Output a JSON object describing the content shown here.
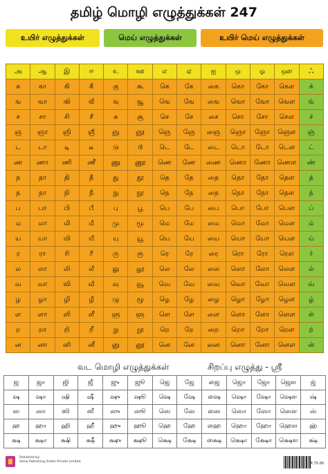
{
  "title": "தமிழ் மொழி எழுத்துக்கள் 247",
  "legend": {
    "vowels": "உயிர் எழுத்துக்கள்",
    "consonants": "மெய் எழுத்துக்கள்",
    "compound": "உயிர் மெய் எழுத்துக்கள்"
  },
  "colors": {
    "vowel": "#f2e11f",
    "consonant": "#8cc63f",
    "compound": "#f4a21d"
  },
  "vowels": [
    "அ",
    "ஆ",
    "இ",
    "ஈ",
    "உ",
    "ஊ",
    "எ",
    "ஏ",
    "ஐ",
    "ஒ",
    "ஓ",
    "ஔ",
    "ஃ"
  ],
  "rows": [
    {
      "cells": [
        "க",
        "கா",
        "கி",
        "கீ",
        "கு",
        "கூ",
        "கெ",
        "கே",
        "கை",
        "கொ",
        "கோ",
        "கௌ"
      ],
      "consonant": "க்"
    },
    {
      "cells": [
        "ங",
        "ஙா",
        "ஙி",
        "ஙீ",
        "ஙு",
        "ஙூ",
        "ஙெ",
        "ஙே",
        "ஙை",
        "ஙொ",
        "ஙோ",
        "ஙௌ"
      ],
      "consonant": "ங்"
    },
    {
      "cells": [
        "ச",
        "சா",
        "சி",
        "சீ",
        "சு",
        "சூ",
        "செ",
        "சே",
        "சை",
        "சொ",
        "சோ",
        "சௌ"
      ],
      "consonant": "ச்"
    },
    {
      "cells": [
        "ஞ",
        "ஞா",
        "ஞி",
        "ஞீ",
        "ஞு",
        "ஞூ",
        "ஞெ",
        "ஞே",
        "ஞை",
        "ஞொ",
        "ஞோ",
        "ஞௌ"
      ],
      "consonant": "ஞ்"
    },
    {
      "cells": [
        "ட",
        "டா",
        "டி",
        "டீ",
        "டு",
        "டூ",
        "டெ",
        "டே",
        "டை",
        "டொ",
        "டோ",
        "டௌ"
      ],
      "consonant": "ட்"
    },
    {
      "cells": [
        "ண",
        "ணா",
        "ணி",
        "ணீ",
        "ணு",
        "ணூ",
        "ணெ",
        "ணே",
        "ணை",
        "ணொ",
        "ணோ",
        "ணௌ"
      ],
      "consonant": "ண்"
    },
    {
      "cells": [
        "த",
        "தா",
        "தி",
        "தீ",
        "து",
        "தூ",
        "தெ",
        "தே",
        "தை",
        "தொ",
        "தோ",
        "தௌ"
      ],
      "consonant": "த்"
    },
    {
      "cells": [
        "ந",
        "நா",
        "நி",
        "நீ",
        "நு",
        "நூ",
        "நெ",
        "நே",
        "நை",
        "நொ",
        "நோ",
        "நௌ"
      ],
      "consonant": "ந்"
    },
    {
      "cells": [
        "ப",
        "பா",
        "பி",
        "பீ",
        "பு",
        "பூ",
        "பெ",
        "பே",
        "பை",
        "பொ",
        "போ",
        "பௌ"
      ],
      "consonant": "ப்"
    },
    {
      "cells": [
        "ம",
        "மா",
        "மி",
        "மீ",
        "மு",
        "மூ",
        "மெ",
        "மே",
        "மை",
        "மொ",
        "மோ",
        "மௌ"
      ],
      "consonant": "ம்"
    },
    {
      "cells": [
        "ய",
        "யா",
        "யி",
        "யீ",
        "யு",
        "யூ",
        "யெ",
        "யே",
        "யை",
        "யொ",
        "யோ",
        "யௌ"
      ],
      "consonant": "ய்"
    },
    {
      "cells": [
        "ர",
        "ரா",
        "ரி",
        "ரீ",
        "ரு",
        "ரூ",
        "ரெ",
        "ரே",
        "ரை",
        "ரொ",
        "ரோ",
        "ரௌ"
      ],
      "consonant": "ர்"
    },
    {
      "cells": [
        "ல",
        "லா",
        "லி",
        "லீ",
        "லு",
        "லூ",
        "லெ",
        "லே",
        "லை",
        "லொ",
        "லோ",
        "லௌ"
      ],
      "consonant": "ல்"
    },
    {
      "cells": [
        "வ",
        "வா",
        "வி",
        "வீ",
        "வு",
        "வூ",
        "வெ",
        "வே",
        "வை",
        "வொ",
        "வோ",
        "வௌ"
      ],
      "consonant": "வ்"
    },
    {
      "cells": [
        "ழ",
        "ழா",
        "ழி",
        "ழீ",
        "ழு",
        "ழூ",
        "ழெ",
        "ழே",
        "ழை",
        "ழொ",
        "ழோ",
        "ழௌ"
      ],
      "consonant": "ழ்"
    },
    {
      "cells": [
        "ள",
        "ளா",
        "ளி",
        "ளீ",
        "ளு",
        "ளூ",
        "ளெ",
        "ளே",
        "ளை",
        "ளொ",
        "ளோ",
        "ளௌ"
      ],
      "consonant": "ள்"
    },
    {
      "cells": [
        "ற",
        "றா",
        "றி",
        "றீ",
        "று",
        "றூ",
        "றெ",
        "றே",
        "றை",
        "றொ",
        "றோ",
        "றௌ"
      ],
      "consonant": "ற்"
    },
    {
      "cells": [
        "ன",
        "னா",
        "னி",
        "னீ",
        "னு",
        "னூ",
        "னெ",
        "னே",
        "னை",
        "னொ",
        "னோ",
        "னௌ"
      ],
      "consonant": "ன்"
    }
  ],
  "grantha_title": "வட மொழி எழுத்துக்கள்",
  "special_title": "சிறப்பு எழுத்து - ஸ்ரீ",
  "grantha_rows": [
    [
      "ஜ",
      "ஜா",
      "ஜி",
      "ஜீ",
      "ஜு",
      "ஜூ",
      "ஜெ",
      "ஜே",
      "ஜை",
      "ஜொ",
      "ஜோ",
      "ஜௌ",
      "ஜ்"
    ],
    [
      "ஷ",
      "ஷா",
      "ஷி",
      "ஷீ",
      "ஷு",
      "ஷூ",
      "ஷெ",
      "ஷே",
      "ஷை",
      "ஷொ",
      "ஷோ",
      "ஷௌ",
      "ஷ்"
    ],
    [
      "ஸ",
      "ஸா",
      "ஸி",
      "ஸீ",
      "ஸு",
      "ஸூ",
      "ஸெ",
      "ஸே",
      "ஸை",
      "ஸொ",
      "ஸோ",
      "ஸௌ",
      "ஸ்"
    ],
    [
      "ஹ",
      "ஹா",
      "ஹி",
      "ஹீ",
      "ஹு",
      "ஹூ",
      "ஹெ",
      "ஹே",
      "ஹை",
      "ஹொ",
      "ஹோ",
      "ஹௌ",
      "ஹ்"
    ],
    [
      "க்ஷ",
      "க்ஷா",
      "க்ஷி",
      "க்ஷீ",
      "க்ஷு",
      "க்ஷூ",
      "க்ஷெ",
      "க்ஷே",
      "க்ஷை",
      "க்ஷொ",
      "க்ஷோ",
      "க்ஷௌ",
      "க்ஷ்"
    ]
  ],
  "footer": {
    "published_by": "Published by:",
    "publisher": "Smile Publishing (India) Private Limited,",
    "price": "₹ 75.00"
  }
}
